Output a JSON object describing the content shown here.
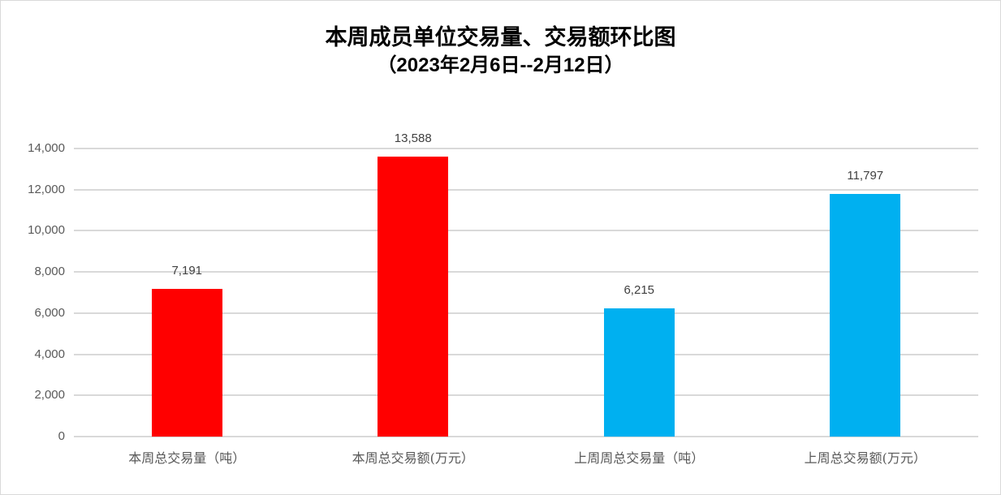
{
  "chart_data": {
    "type": "bar",
    "title": "本周成员单位交易量、交易额环比图",
    "subtitle": "（2023年2月6日--2月12日）",
    "categories": [
      "本周总交易量（吨）",
      "本周总交易额(万元）",
      "上周周总交易量（吨）",
      "上周总交易额(万元）"
    ],
    "values": [
      7191,
      13588,
      6215,
      11797
    ],
    "value_labels": [
      "7,191",
      "13,588",
      "6,215",
      "11,797"
    ],
    "colors": [
      "#FF0000",
      "#FF0000",
      "#00B0F0",
      "#00B0F0"
    ],
    "xlabel": "",
    "ylabel": "",
    "ylim": [
      0,
      14000
    ],
    "yticks": [
      0,
      2000,
      4000,
      6000,
      8000,
      10000,
      12000,
      14000
    ],
    "ytick_labels": [
      "0",
      "2,000",
      "4,000",
      "6,000",
      "8,000",
      "10,000",
      "12,000",
      "14,000"
    ],
    "grid": true,
    "legend": "none"
  }
}
